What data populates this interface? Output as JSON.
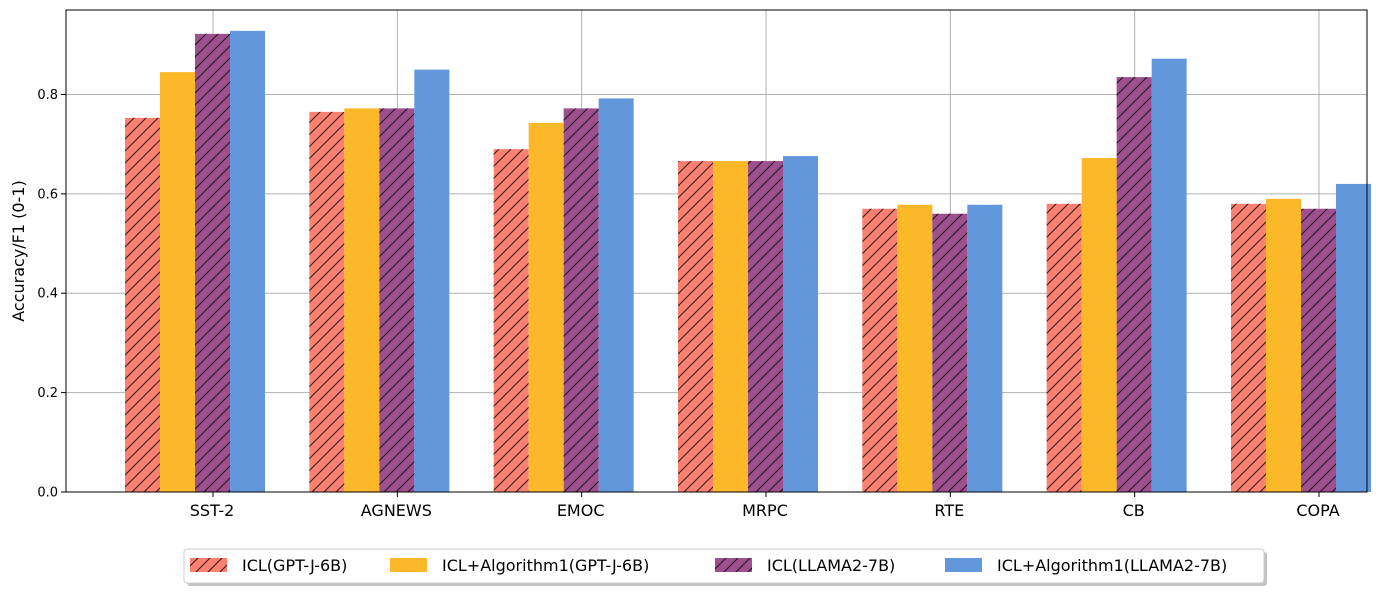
{
  "chart_data": {
    "type": "bar",
    "title": "",
    "xlabel": "",
    "ylabel": "Accuracy/F1 (0-1)",
    "ylim": [
      0,
      0.97
    ],
    "yticks": [
      0.0,
      0.2,
      0.4,
      0.6,
      0.8
    ],
    "ytick_labels": [
      "0.0",
      "0.2",
      "0.4",
      "0.6",
      "0.8"
    ],
    "grid": true,
    "legend_position": "bottom-center",
    "categories": [
      "SST-2",
      "AGNEWS",
      "EMOC",
      "MRPC",
      "RTE",
      "CB",
      "COPA"
    ],
    "series": [
      {
        "name": "ICL(GPT-J-6B)",
        "color": "#fa8072",
        "hatch": true,
        "values": [
          0.753,
          0.765,
          0.69,
          0.666,
          0.57,
          0.58,
          0.58
        ]
      },
      {
        "name": "ICL+Algorithm1(GPT-J-6B)",
        "color": "#fbb829",
        "hatch": false,
        "values": [
          0.845,
          0.772,
          0.743,
          0.666,
          0.578,
          0.672,
          0.59
        ]
      },
      {
        "name": "ICL(LLAMA2-7B)",
        "color": "#9e4f8e",
        "hatch": true,
        "values": [
          0.922,
          0.772,
          0.772,
          0.666,
          0.56,
          0.835,
          0.57
        ]
      },
      {
        "name": "ICL+Algorithm1(LLAMA2-7B)",
        "color": "#6297dc",
        "hatch": false,
        "values": [
          0.928,
          0.85,
          0.792,
          0.676,
          0.578,
          0.872,
          0.62
        ]
      }
    ]
  }
}
